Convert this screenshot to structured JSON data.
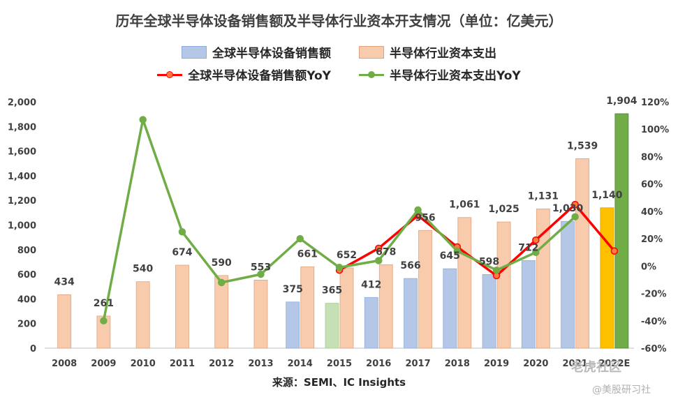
{
  "title": "历年全球半导体设备销售额及半导体行业资本开支情况（单位：亿美元）",
  "legend": {
    "equip": "全球半导体设备销售额",
    "capex": "半导体行业资本支出",
    "equip_yoy": "全球半导体设备销售额YoY",
    "capex_yoy": "半导体行业资本支出YoY"
  },
  "source": "来源：SEMI、IC Insights",
  "watermark": {
    "line1": "老虎社区",
    "line2": "@美股研习社"
  },
  "colors": {
    "equip": "#b4c7e7",
    "capex": "#f8cbad",
    "equip_2015": "#c5e0b4",
    "equip_2022": "#ffc000",
    "capex_2022": "#70ad47",
    "equip_yoy": "#ff0000",
    "capex_yoy": "#70ad47"
  },
  "chart_data": {
    "type": "bar",
    "categories": [
      "2008",
      "2009",
      "2010",
      "2011",
      "2012",
      "2013",
      "2014",
      "2015",
      "2016",
      "2017",
      "2018",
      "2019",
      "2020",
      "2021",
      "2022E"
    ],
    "series": [
      {
        "name": "全球半导体设备销售额",
        "values": [
          null,
          null,
          null,
          null,
          null,
          null,
          375,
          365,
          412,
          566,
          645,
          598,
          712,
          1030,
          1140
        ]
      },
      {
        "name": "半导体行业资本支出",
        "values": [
          434,
          261,
          540,
          674,
          590,
          553,
          661,
          652,
          678,
          956,
          1061,
          1025,
          1131,
          1539,
          1904
        ]
      },
      {
        "name": "全球半导体设备销售额YoY",
        "axis": "right",
        "values": [
          null,
          null,
          null,
          null,
          null,
          null,
          null,
          -3,
          13,
          37,
          14,
          -7,
          19,
          45,
          11
        ]
      },
      {
        "name": "半导体行业资本支出YoY",
        "axis": "right",
        "values": [
          null,
          -40,
          107,
          25,
          -12,
          -6,
          20,
          -1,
          4,
          41,
          11,
          -3,
          10,
          36,
          null
        ]
      }
    ],
    "labels": {
      "equip": [
        "",
        "",
        "",
        "",
        "",
        "",
        "375",
        "365",
        "412",
        "566",
        "645",
        "598",
        "712",
        "1,030",
        "1,140"
      ],
      "capex": [
        "434",
        "261",
        "540",
        "674",
        "590",
        "553",
        "661",
        "652",
        "678",
        "956",
        "1,061",
        "1,025",
        "1,131",
        "1,539",
        "1,904"
      ]
    },
    "y_left": {
      "ticks": [
        "0",
        "200",
        "400",
        "600",
        "800",
        "1,000",
        "1,200",
        "1,400",
        "1,600",
        "1,800",
        "2,000"
      ],
      "lim": [
        0,
        2000
      ]
    },
    "y_right": {
      "ticks": [
        "-60%",
        "-40%",
        "-20%",
        "0%",
        "20%",
        "40%",
        "60%",
        "80%",
        "100%",
        "120%"
      ],
      "lim": [
        -60,
        120
      ]
    },
    "grid": false,
    "legend_position": "top"
  }
}
